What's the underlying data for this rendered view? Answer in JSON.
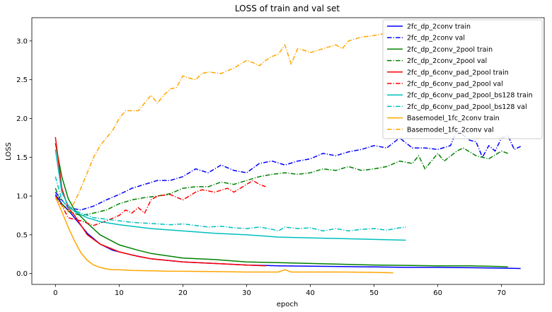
{
  "chart_data": {
    "type": "line",
    "title": "LOSS of train and val set",
    "xlabel": "epoch",
    "ylabel": "LOSS",
    "xlim": [
      -3.7,
      76.7
    ],
    "ylim": [
      -0.14,
      3.3
    ],
    "xticks": [
      0,
      10,
      20,
      30,
      40,
      50,
      60,
      70
    ],
    "yticks": [
      0.0,
      0.5,
      1.0,
      1.5,
      2.0,
      2.5,
      3.0
    ],
    "grid": false,
    "legend_position": "top-right",
    "series": [
      {
        "name": "2fc_dp_2conv train",
        "color": "#0000ff",
        "dash": "solid",
        "x": [
          0,
          1,
          2,
          3,
          5,
          7,
          9,
          12,
          15,
          20,
          25,
          30,
          35,
          40,
          45,
          50,
          55,
          60,
          65,
          70,
          73
        ],
        "y": [
          1.02,
          0.9,
          0.82,
          0.72,
          0.52,
          0.38,
          0.3,
          0.24,
          0.19,
          0.15,
          0.13,
          0.11,
          0.1,
          0.095,
          0.09,
          0.085,
          0.08,
          0.08,
          0.075,
          0.07,
          0.065
        ]
      },
      {
        "name": "2fc_dp_2conv val",
        "color": "#0000ff",
        "dash": "dashdot",
        "x": [
          0,
          1,
          2,
          4,
          6,
          8,
          10,
          12,
          14,
          16,
          18,
          20,
          22,
          24,
          26,
          28,
          30,
          32,
          34,
          36,
          38,
          40,
          42,
          44,
          46,
          48,
          50,
          52,
          54,
          56,
          58,
          60,
          62,
          63,
          65,
          66,
          67,
          68,
          69,
          70,
          71,
          72,
          73
        ],
        "y": [
          1.05,
          0.95,
          0.85,
          0.82,
          0.87,
          0.95,
          1.02,
          1.1,
          1.15,
          1.2,
          1.2,
          1.25,
          1.35,
          1.3,
          1.4,
          1.33,
          1.3,
          1.42,
          1.45,
          1.4,
          1.45,
          1.48,
          1.55,
          1.52,
          1.57,
          1.6,
          1.65,
          1.62,
          1.75,
          1.62,
          1.62,
          1.6,
          1.65,
          1.85,
          1.72,
          1.7,
          1.5,
          1.65,
          1.58,
          1.75,
          1.78,
          1.6,
          1.64
        ]
      },
      {
        "name": "2fc_dp_2conv_2pool train",
        "color": "#008000",
        "dash": "solid",
        "x": [
          0,
          1,
          2,
          3,
          5,
          7,
          10,
          13,
          15,
          20,
          25,
          30,
          35,
          40,
          45,
          50,
          55,
          60,
          65,
          70,
          71
        ],
        "y": [
          1.68,
          1.25,
          0.97,
          0.82,
          0.65,
          0.5,
          0.37,
          0.3,
          0.26,
          0.2,
          0.18,
          0.15,
          0.14,
          0.13,
          0.12,
          0.11,
          0.105,
          0.1,
          0.1,
          0.09,
          0.085
        ]
      },
      {
        "name": "2fc_dp_2conv_2pool val",
        "color": "#008000",
        "dash": "dashdot",
        "x": [
          0,
          1,
          2,
          4,
          6,
          8,
          10,
          12,
          14,
          16,
          18,
          20,
          22,
          24,
          26,
          28,
          30,
          32,
          34,
          36,
          38,
          40,
          42,
          44,
          46,
          48,
          50,
          52,
          54,
          56,
          57,
          58,
          60,
          61,
          63,
          64,
          66,
          68,
          70,
          71
        ],
        "y": [
          1.1,
          0.9,
          0.8,
          0.75,
          0.78,
          0.82,
          0.9,
          0.95,
          0.98,
          1.0,
          1.03,
          1.1,
          1.12,
          1.12,
          1.18,
          1.15,
          1.2,
          1.25,
          1.28,
          1.3,
          1.28,
          1.3,
          1.35,
          1.33,
          1.38,
          1.33,
          1.35,
          1.38,
          1.45,
          1.42,
          1.52,
          1.35,
          1.55,
          1.45,
          1.58,
          1.62,
          1.52,
          1.48,
          1.58,
          1.55
        ]
      },
      {
        "name": "2fc_dp_6conv_pad_2pool train",
        "color": "#ff0000",
        "dash": "solid",
        "x": [
          0,
          1,
          2,
          3,
          5,
          7,
          10,
          13,
          15,
          20,
          25,
          30,
          33
        ],
        "y": [
          1.76,
          1.1,
          0.85,
          0.75,
          0.5,
          0.38,
          0.28,
          0.22,
          0.19,
          0.15,
          0.13,
          0.11,
          0.1
        ]
      },
      {
        "name": "2fc_dp_6conv_pad_2pool val",
        "color": "#ff0000",
        "dash": "dashdot",
        "x": [
          0,
          1,
          2,
          4,
          6,
          8,
          10,
          11,
          12,
          13,
          14,
          15,
          16,
          18,
          20,
          22,
          23,
          25,
          27,
          28,
          30,
          31,
          32,
          33
        ],
        "y": [
          1.0,
          0.88,
          0.72,
          0.68,
          0.62,
          0.68,
          0.75,
          0.82,
          0.78,
          0.85,
          0.78,
          0.95,
          1.0,
          1.02,
          0.95,
          1.05,
          1.08,
          1.05,
          1.1,
          1.05,
          1.15,
          1.2,
          1.15,
          1.12
        ]
      },
      {
        "name": "2fc_dp_6conv_pad_2pool_bs128 train",
        "color": "#00bfbf",
        "dash": "solid",
        "x": [
          0,
          1,
          2,
          3,
          5,
          7,
          10,
          15,
          20,
          25,
          30,
          35,
          40,
          45,
          50,
          55
        ],
        "y": [
          1.6,
          1.05,
          0.88,
          0.8,
          0.72,
          0.67,
          0.63,
          0.58,
          0.55,
          0.52,
          0.5,
          0.47,
          0.46,
          0.45,
          0.44,
          0.43
        ]
      },
      {
        "name": "2fc_dp_6conv_pad_2pool_bs128 val",
        "color": "#00bfbf",
        "dash": "dashdot",
        "x": [
          0,
          1,
          2,
          4,
          6,
          8,
          10,
          12,
          14,
          16,
          18,
          20,
          22,
          24,
          26,
          28,
          30,
          32,
          34,
          35,
          36,
          38,
          40,
          42,
          44,
          46,
          48,
          50,
          52,
          54,
          55
        ],
        "y": [
          1.25,
          0.95,
          0.85,
          0.78,
          0.72,
          0.7,
          0.68,
          0.66,
          0.65,
          0.64,
          0.63,
          0.64,
          0.62,
          0.6,
          0.61,
          0.59,
          0.58,
          0.6,
          0.57,
          0.55,
          0.6,
          0.58,
          0.59,
          0.55,
          0.58,
          0.55,
          0.57,
          0.58,
          0.56,
          0.59,
          0.6
        ]
      },
      {
        "name": "Basemodel_1fc_2conv train",
        "color": "#ffa500",
        "dash": "solid",
        "x": [
          0,
          1,
          2,
          3,
          4,
          5,
          6,
          7,
          8,
          9,
          10,
          12,
          15,
          18,
          20,
          25,
          30,
          35,
          36,
          37,
          40,
          45,
          50,
          53
        ],
        "y": [
          0.99,
          0.8,
          0.6,
          0.42,
          0.27,
          0.17,
          0.11,
          0.08,
          0.06,
          0.05,
          0.05,
          0.04,
          0.035,
          0.03,
          0.03,
          0.025,
          0.02,
          0.02,
          0.05,
          0.02,
          0.02,
          0.02,
          0.015,
          0.01
        ]
      },
      {
        "name": "Basemodel_1fc_2conv val",
        "color": "#ffa500",
        "dash": "dashdot",
        "x": [
          0,
          1,
          2,
          3,
          4,
          5,
          6,
          7,
          8,
          9,
          10,
          11,
          12,
          13,
          14,
          15,
          16,
          17,
          18,
          19,
          20,
          21,
          22,
          23,
          24,
          26,
          28,
          30,
          31,
          32,
          33,
          34,
          35,
          36,
          37,
          38,
          39,
          40,
          42,
          44,
          45,
          46,
          48,
          50,
          52,
          53
        ],
        "y": [
          0.97,
          0.88,
          0.8,
          0.92,
          1.1,
          1.3,
          1.5,
          1.65,
          1.75,
          1.85,
          2.0,
          2.1,
          2.1,
          2.1,
          2.2,
          2.3,
          2.2,
          2.3,
          2.38,
          2.4,
          2.55,
          2.52,
          2.5,
          2.58,
          2.6,
          2.58,
          2.65,
          2.75,
          2.72,
          2.68,
          2.75,
          2.8,
          2.83,
          2.95,
          2.7,
          2.9,
          2.88,
          2.85,
          2.9,
          2.95,
          2.9,
          3.0,
          3.05,
          3.07,
          3.1,
          3.13
        ]
      }
    ]
  }
}
